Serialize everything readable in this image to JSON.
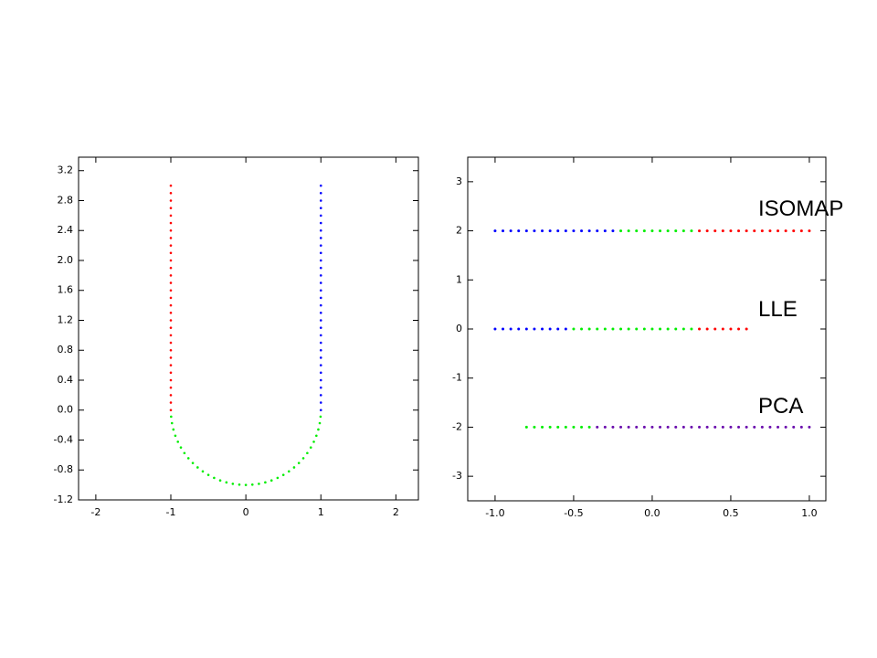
{
  "chart_data": [
    {
      "type": "scatter",
      "xlim": [
        -2.23,
        2.3
      ],
      "ylim": [
        -1.2,
        3.38
      ],
      "xticks": [
        -2,
        -1,
        0,
        1,
        2
      ],
      "yticks": [
        -1.2,
        -0.8,
        -0.4,
        {
          "value": 0,
          "label": "0.0"
        },
        0.4,
        0.8,
        1.2,
        1.6,
        {
          "value": 2,
          "label": "2.0"
        },
        2.4,
        2.8,
        3.2
      ],
      "series": [
        {
          "color": "#ff0000",
          "x": [
            -1,
            -1,
            -1,
            -1,
            -1,
            -1,
            -1,
            -1,
            -1,
            -1,
            -1,
            -1,
            -1,
            -1,
            -1,
            -1,
            -1,
            -1,
            -1,
            -1,
            -1,
            -1,
            -1,
            -1,
            -1,
            -1,
            -1,
            -1,
            -1,
            -1,
            -1
          ],
          "values": [
            0,
            0.1,
            0.2,
            0.3,
            0.4,
            0.5,
            0.6,
            0.7,
            0.8,
            0.9,
            1,
            1.1,
            1.2,
            1.3,
            1.4,
            1.5,
            1.6,
            1.7,
            1.8,
            1.9,
            2,
            2.1,
            2.2,
            2.3,
            2.4,
            2.5,
            2.6,
            2.7,
            2.8,
            2.9,
            3
          ]
        },
        {
          "color": "#00ee00",
          "x": [
            -0.996,
            -0.985,
            -0.966,
            -0.94,
            -0.906,
            -0.866,
            -0.819,
            -0.766,
            -0.707,
            -0.643,
            -0.574,
            -0.5,
            -0.423,
            -0.342,
            -0.259,
            -0.174,
            -0.087,
            0,
            0.087,
            0.174,
            0.259,
            0.342,
            0.423,
            0.5,
            0.574,
            0.643,
            0.707,
            0.766,
            0.819,
            0.866,
            0.906,
            0.94,
            0.966,
            0.985,
            0.996
          ],
          "values": [
            -0.087,
            -0.174,
            -0.259,
            -0.342,
            -0.423,
            -0.5,
            -0.574,
            -0.643,
            -0.707,
            -0.766,
            -0.819,
            -0.866,
            -0.906,
            -0.94,
            -0.966,
            -0.985,
            -0.996,
            -1,
            -0.996,
            -0.985,
            -0.966,
            -0.94,
            -0.906,
            -0.866,
            -0.819,
            -0.766,
            -0.707,
            -0.643,
            -0.574,
            -0.5,
            -0.423,
            -0.342,
            -0.259,
            -0.174,
            -0.087
          ]
        },
        {
          "color": "#0000ff",
          "x": [
            1,
            1,
            1,
            1,
            1,
            1,
            1,
            1,
            1,
            1,
            1,
            1,
            1,
            1,
            1,
            1,
            1,
            1,
            1,
            1,
            1,
            1,
            1,
            1,
            1,
            1,
            1,
            1,
            1,
            1,
            1
          ],
          "values": [
            0,
            0.1,
            0.2,
            0.3,
            0.4,
            0.5,
            0.6,
            0.7,
            0.8,
            0.9,
            1,
            1.1,
            1.2,
            1.3,
            1.4,
            1.5,
            1.6,
            1.7,
            1.8,
            1.9,
            2,
            2.1,
            2.2,
            2.3,
            2.4,
            2.5,
            2.6,
            2.7,
            2.8,
            2.9,
            3
          ]
        }
      ]
    },
    {
      "type": "scatter",
      "xlim": [
        -1.174,
        1.105
      ],
      "ylim": [
        -3.5,
        3.5
      ],
      "xticks": [
        {
          "value": -1,
          "label": "-1.0"
        },
        -0.5,
        {
          "value": 0,
          "label": "0.0"
        },
        0.5,
        {
          "value": 1,
          "label": "1.0"
        }
      ],
      "yticks": [
        -3,
        -2,
        -1,
        0,
        1,
        2,
        3
      ],
      "annotations": [
        "ISOMAP",
        "LLE",
        "PCA"
      ],
      "series": [
        {
          "color": "#0000ff",
          "x": [
            -1,
            -0.95,
            -0.9,
            -0.85,
            -0.8,
            -0.75,
            -0.7,
            -0.65,
            -0.6,
            -0.55,
            -0.5,
            -0.45,
            -0.4,
            -0.35,
            -0.3,
            -0.25
          ],
          "values": [
            2,
            2,
            2,
            2,
            2,
            2,
            2,
            2,
            2,
            2,
            2,
            2,
            2,
            2,
            2,
            2
          ]
        },
        {
          "color": "#00ee00",
          "x": [
            -0.2,
            -0.15,
            -0.1,
            -0.05,
            0,
            0.05,
            0.1,
            0.15,
            0.2,
            0.25
          ],
          "values": [
            2,
            2,
            2,
            2,
            2,
            2,
            2,
            2,
            2,
            2
          ]
        },
        {
          "color": "#ff0000",
          "x": [
            0.3,
            0.35,
            0.4,
            0.45,
            0.5,
            0.55,
            0.6,
            0.65,
            0.7,
            0.75,
            0.8,
            0.85,
            0.9,
            0.95,
            1
          ],
          "values": [
            2,
            2,
            2,
            2,
            2,
            2,
            2,
            2,
            2,
            2,
            2,
            2,
            2,
            2,
            2
          ]
        },
        {
          "color": "#0000ff",
          "x": [
            -1,
            -0.95,
            -0.9,
            -0.85,
            -0.8,
            -0.75,
            -0.7,
            -0.65,
            -0.6,
            -0.55
          ],
          "values": [
            0,
            0,
            0,
            0,
            0,
            0,
            0,
            0,
            0,
            0
          ]
        },
        {
          "color": "#00ee00",
          "x": [
            -0.5,
            -0.45,
            -0.4,
            -0.35,
            -0.3,
            -0.25,
            -0.2,
            -0.15,
            -0.1,
            -0.05,
            0,
            0.05,
            0.1,
            0.15,
            0.2,
            0.25
          ],
          "values": [
            0,
            0,
            0,
            0,
            0,
            0,
            0,
            0,
            0,
            0,
            0,
            0,
            0,
            0,
            0,
            0
          ]
        },
        {
          "color": "#ff0000",
          "x": [
            0.3,
            0.35,
            0.4,
            0.45,
            0.5,
            0.55,
            0.6
          ],
          "values": [
            0,
            0,
            0,
            0,
            0,
            0,
            0
          ]
        },
        {
          "color": "#00ee00",
          "x": [
            -0.8,
            -0.75,
            -0.7,
            -0.65,
            -0.6,
            -0.55,
            -0.5,
            -0.45,
            -0.4
          ],
          "values": [
            -2,
            -2,
            -2,
            -2,
            -2,
            -2,
            -2,
            -2,
            -2
          ]
        },
        {
          "color": "#6a0dad",
          "x": [
            -0.35,
            -0.3,
            -0.25,
            -0.2,
            -0.15,
            -0.1,
            -0.05,
            0,
            0.05,
            0.1,
            0.15,
            0.2,
            0.25,
            0.3,
            0.35,
            0.4,
            0.45,
            0.5,
            0.55,
            0.6,
            0.65,
            0.7,
            0.75,
            0.8,
            0.85,
            0.9,
            0.95,
            1
          ],
          "values": [
            -2,
            -2,
            -2,
            -2,
            -2,
            -2,
            -2,
            -2,
            -2,
            -2,
            -2,
            -2,
            -2,
            -2,
            -2,
            -2,
            -2,
            -2,
            -2,
            -2,
            -2,
            -2,
            -2,
            -2,
            -2,
            -2,
            -2,
            -2
          ]
        }
      ]
    }
  ]
}
